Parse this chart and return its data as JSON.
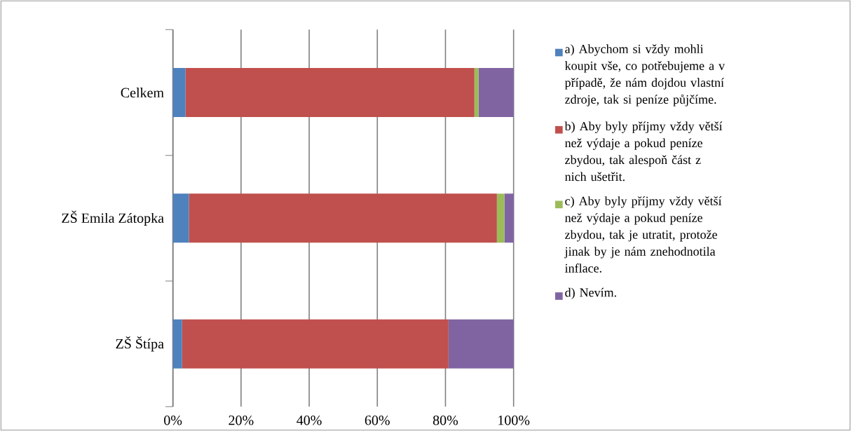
{
  "chart_data": {
    "type": "bar",
    "orientation": "horizontal",
    "stacked": true,
    "categories": [
      "Celkem",
      "ZŠ Emila Zátopka",
      "ZŠ Štípa"
    ],
    "series": [
      {
        "name": "a) Abychom si vždy mohli koupit vše, co potřebujeme a v případě, že nám dojdou vlastní zdroje, tak si peníze půjčíme.",
        "color": "#4f81bd",
        "values": [
          3.7,
          4.7,
          2.7
        ]
      },
      {
        "name": "b) Aby byly příjmy vždy větší než výdaje a pokud peníze zbydou, tak alespoň část z nich ušetřit.",
        "color": "#c0504d",
        "values": [
          84.8,
          90.4,
          78.2
        ]
      },
      {
        "name": "c) Aby byly příjmy vždy větší než výdaje a pokud peníze zbydou, tak je utratit, protože jinak by je nám znehodnotila inflace.",
        "color": "#9bbb59",
        "values": [
          1.2,
          2.2,
          0
        ]
      },
      {
        "name": "d) Nevím.",
        "color": "#8064a2",
        "values": [
          10.3,
          2.7,
          19.1
        ]
      }
    ],
    "xlim": [
      0,
      100
    ],
    "xticks": [
      {
        "value": 0,
        "label": "0%"
      },
      {
        "value": 20,
        "label": "20%"
      },
      {
        "value": 40,
        "label": "40%"
      },
      {
        "value": 60,
        "label": "60%"
      },
      {
        "value": 80,
        "label": "80%"
      },
      {
        "value": 100,
        "label": "100%"
      }
    ],
    "grid": "x",
    "legend": "right"
  }
}
